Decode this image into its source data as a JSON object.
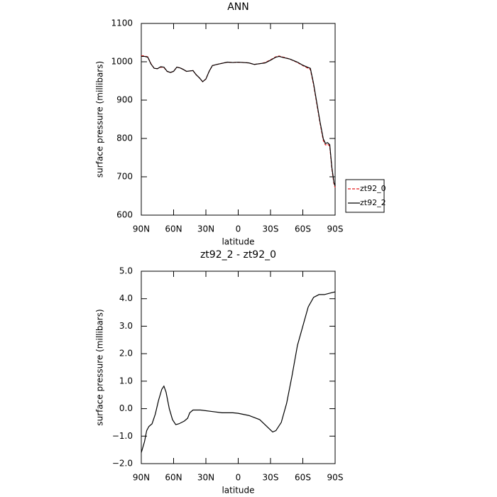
{
  "chart_data": [
    {
      "type": "line",
      "title": "ANN",
      "x_label": "latitude",
      "y_label": "surface pressure (millibars)",
      "x": [
        90,
        87,
        84,
        81,
        78,
        75,
        72,
        69,
        66,
        63,
        60,
        57,
        54,
        51,
        48,
        45,
        42,
        39,
        36,
        33,
        30,
        27,
        24,
        20,
        15,
        10,
        5,
        0,
        -5,
        -10,
        -15,
        -20,
        -25,
        -30,
        -35,
        -38,
        -42,
        -48,
        -55,
        -60,
        -65,
        -67,
        -70,
        -73,
        -76,
        -79,
        -81,
        -83,
        -85,
        -87,
        -89,
        -90
      ],
      "series": [
        {
          "name": "zt92_0",
          "color": "#e41a1c",
          "dashed": true,
          "values": [
            1016,
            1015,
            1013,
            995,
            983,
            982,
            986,
            985,
            975,
            972,
            975,
            986,
            984,
            980,
            975,
            976,
            977,
            966,
            958,
            948,
            955,
            975,
            990,
            993,
            996,
            999,
            998,
            999,
            998,
            997,
            993,
            995,
            998,
            1005,
            1013,
            1015,
            1012,
            1007,
            998,
            990,
            983,
            980,
            940,
            890,
            840,
            795,
            783,
            785,
            780,
            720,
            680,
            672
          ]
        },
        {
          "name": "zt92_2",
          "color": "#000000",
          "dashed": false,
          "values": [
            1014,
            1014,
            1012,
            994,
            983,
            982,
            987,
            986,
            975,
            972,
            975,
            986,
            984,
            980,
            975,
            976,
            977,
            966,
            958,
            948,
            955,
            975,
            990,
            993,
            996,
            999,
            998,
            999,
            998,
            997,
            993,
            995,
            997,
            1004,
            1012,
            1014,
            1011,
            1007,
            999,
            991,
            985,
            983,
            943,
            893,
            843,
            799,
            787,
            789,
            784,
            724,
            684,
            676
          ]
        }
      ],
      "xlim": [
        90,
        -90
      ],
      "xticks": [
        {
          "value": 90,
          "label": "90N"
        },
        {
          "value": 60,
          "label": "60N"
        },
        {
          "value": 30,
          "label": "30N"
        },
        0,
        {
          "value": -30,
          "label": "30S"
        },
        {
          "value": -60,
          "label": "60S"
        },
        {
          "value": -90,
          "label": "90S"
        }
      ],
      "ylim": [
        600,
        1100
      ],
      "yticks": [
        600,
        700,
        800,
        900,
        1000,
        1100
      ],
      "legend": "right"
    },
    {
      "type": "line",
      "title": "zt92_2 - zt92_0",
      "x_label": "latitude",
      "y_label": "surface pressure (millibars)",
      "x": [
        90,
        87,
        85,
        83,
        80,
        77,
        74,
        71,
        69,
        67,
        64,
        61,
        58,
        55,
        50,
        47,
        45,
        42,
        35,
        25,
        15,
        5,
        0,
        -10,
        -20,
        -28,
        -32,
        -35,
        -40,
        -45,
        -50,
        -55,
        -60,
        -65,
        -70,
        -75,
        -80,
        -85,
        -90
      ],
      "series": [
        {
          "color": "#000000",
          "dashed": false,
          "values": [
            -1.6,
            -1.2,
            -0.8,
            -0.65,
            -0.55,
            -0.2,
            0.3,
            0.7,
            0.82,
            0.6,
            0.0,
            -0.4,
            -0.58,
            -0.55,
            -0.45,
            -0.35,
            -0.15,
            -0.05,
            -0.05,
            -0.1,
            -0.15,
            -0.15,
            -0.17,
            -0.25,
            -0.4,
            -0.7,
            -0.85,
            -0.8,
            -0.5,
            0.2,
            1.2,
            2.3,
            3.0,
            3.7,
            4.05,
            4.15,
            4.15,
            4.2,
            4.25
          ]
        }
      ],
      "xlim": [
        90,
        -90
      ],
      "xticks": [
        {
          "value": 90,
          "label": "90N"
        },
        {
          "value": 60,
          "label": "60N"
        },
        {
          "value": 30,
          "label": "30N"
        },
        0,
        {
          "value": -30,
          "label": "30S"
        },
        {
          "value": -60,
          "label": "60S"
        },
        {
          "value": -90,
          "label": "90S"
        }
      ],
      "ylim": [
        -2,
        5
      ],
      "yticks": [
        {
          "value": -2,
          "label": "−2.0"
        },
        {
          "value": -1,
          "label": "−1.0"
        },
        {
          "value": 0,
          "label": "0.0"
        },
        {
          "value": 1,
          "label": "1.0"
        },
        {
          "value": 2,
          "label": "2.0"
        },
        {
          "value": 3,
          "label": "3.0"
        },
        {
          "value": 4,
          "label": "4.0"
        },
        {
          "value": 5,
          "label": "5.0"
        }
      ]
    }
  ]
}
